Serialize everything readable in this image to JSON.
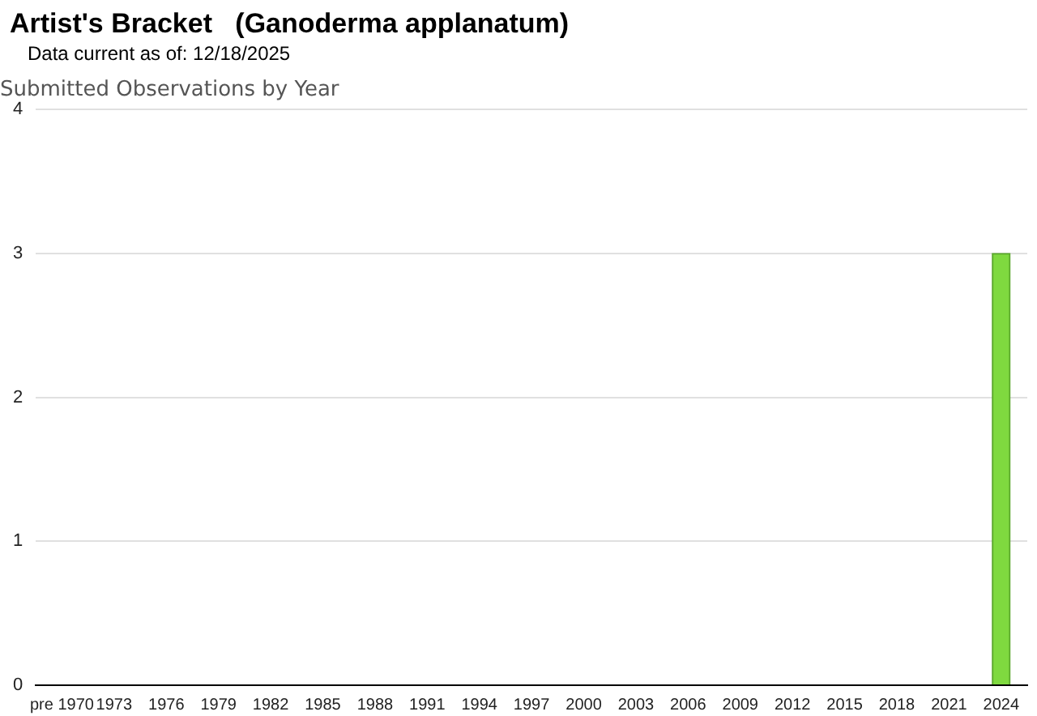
{
  "chart_data": {
    "type": "bar",
    "title": "Artist's Bracket   (Ganoderma applanatum)",
    "subtitle": "Data current as of: 12/18/2025",
    "annotations": [
      "Submitted Observations by Year"
    ],
    "categories": [
      "pre 1970",
      "1973",
      "1976",
      "1979",
      "1982",
      "1985",
      "1988",
      "1991",
      "1994",
      "1997",
      "2000",
      "2003",
      "2006",
      "2009",
      "2012",
      "2015",
      "2018",
      "2021",
      "2024"
    ],
    "values": [
      0,
      0,
      0,
      0,
      0,
      0,
      0,
      0,
      0,
      0,
      0,
      0,
      0,
      0,
      0,
      0,
      0,
      0,
      3
    ],
    "color": "#7fd93f",
    "ylim": [
      0,
      4
    ],
    "yticks": [
      0,
      1,
      2,
      3,
      4
    ],
    "grid": "y",
    "legend": false
  }
}
